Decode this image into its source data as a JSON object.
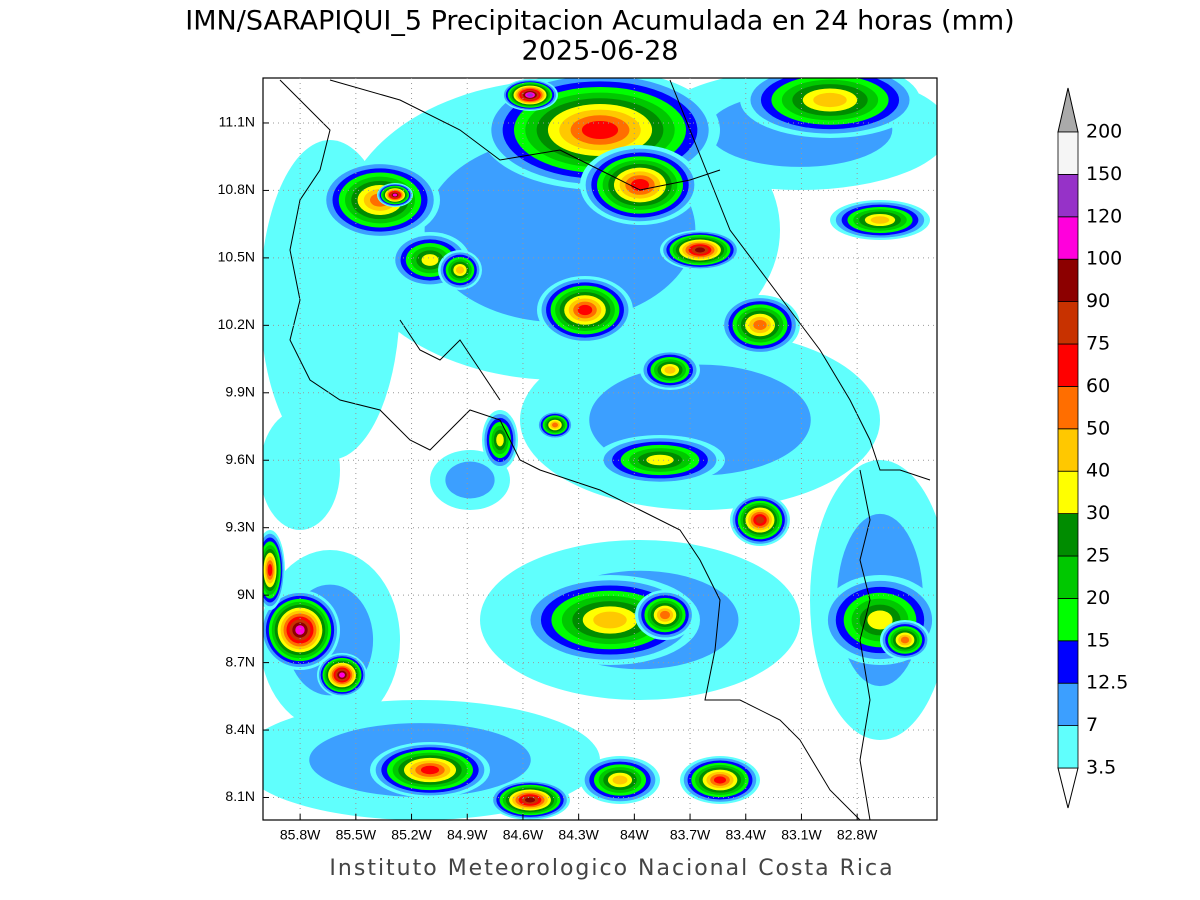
{
  "title": "IMN/SARAPIQUI_5 Precipitacion Acumulada en 24 horas (mm)",
  "subtitle": "2025-06-28",
  "footer": "Instituto Meteorologico Nacional Costa Rica",
  "map": {
    "xlim": [
      -86.0,
      -82.37
    ],
    "ylim": [
      8.0,
      11.3
    ],
    "grid": true,
    "xticks": [
      {
        "value": -85.8,
        "label": "85.8W"
      },
      {
        "value": -85.5,
        "label": "85.5W"
      },
      {
        "value": -85.2,
        "label": "85.2W"
      },
      {
        "value": -84.9,
        "label": "84.9W"
      },
      {
        "value": -84.6,
        "label": "84.6W"
      },
      {
        "value": -84.3,
        "label": "84.3W"
      },
      {
        "value": -84.0,
        "label": "84W"
      },
      {
        "value": -83.7,
        "label": "83.7W"
      },
      {
        "value": -83.4,
        "label": "83.4W"
      },
      {
        "value": -83.1,
        "label": "83.1W"
      },
      {
        "value": -82.8,
        "label": "82.8W"
      }
    ],
    "yticks": [
      {
        "value": 8.1,
        "label": "8.1N"
      },
      {
        "value": 8.4,
        "label": "8.4N"
      },
      {
        "value": 8.7,
        "label": "8.7N"
      },
      {
        "value": 9.0,
        "label": "9N"
      },
      {
        "value": 9.3,
        "label": "9.3N"
      },
      {
        "value": 9.6,
        "label": "9.6N"
      },
      {
        "value": 9.9,
        "label": "9.9N"
      },
      {
        "value": 10.2,
        "label": "10.2N"
      },
      {
        "value": 10.5,
        "label": "10.5N"
      },
      {
        "value": 10.8,
        "label": "10.8N"
      },
      {
        "value": 11.1,
        "label": "11.1N"
      }
    ]
  },
  "colorbar": {
    "levels": [
      3.5,
      7,
      12.5,
      15,
      20,
      25,
      30,
      40,
      50,
      60,
      75,
      90,
      100,
      120,
      150,
      200
    ],
    "colors": [
      "#60fffd",
      "#3c9fff",
      "#0000ff",
      "#00ff00",
      "#00c800",
      "#008c00",
      "#ffff00",
      "#ffc800",
      "#ff6e00",
      "#ff0000",
      "#c83200",
      "#8c0000",
      "#ff00dc",
      "#9632c8",
      "#f5f5f5"
    ],
    "under_color": "#ffffff",
    "over_color": "#aaaaaa"
  }
}
